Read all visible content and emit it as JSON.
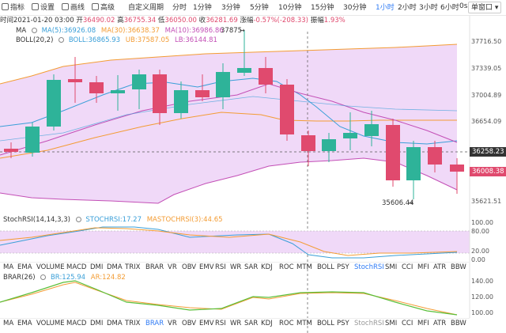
{
  "toolbar": {
    "tools": [
      {
        "label": "指标",
        "icon": "indicator-icon"
      },
      {
        "label": "设置",
        "icon": "settings-icon"
      },
      {
        "label": "画线",
        "icon": "draw-line-icon"
      },
      {
        "label": "高级",
        "icon": "advanced-icon"
      }
    ],
    "custom_period": "自定义周期",
    "timeframes": [
      "分时",
      "1分钟",
      "3分钟",
      "5分钟",
      "10分钟",
      "15分钟",
      "30分钟",
      "1小时",
      "2小时",
      "3小时",
      "6小时"
    ],
    "active_timeframe": "1小时",
    "more": "0s",
    "window_button": "单窗口"
  },
  "info": {
    "time_label": "时间",
    "time": "2021-01-20 03:00",
    "open_label": "开",
    "open": "36490.02",
    "high_label": "高",
    "high": "36755.34",
    "low_label": "低",
    "low": "36050.00",
    "close_label": "收",
    "close": "36281.69",
    "change_label": "涨幅",
    "change": "-0.57%(-208.33)",
    "amplitude_label": "振幅",
    "amplitude": "1.93%"
  },
  "main_legend": {
    "ma_name": "MA",
    "ma5": "MA(5):36926.08",
    "ma30": "MA(30):36638.37",
    "ma10": "MA(10):36986.86",
    "boll_name": "BOLL(20,2)",
    "boll_mid": "BOLL:36865.93",
    "boll_ub": "UB:37587.05",
    "boll_lb": "LB:36144.81"
  },
  "price_axis": [
    "37716.50",
    "37339.05",
    "37004.89",
    "36654.09",
    "36258.23",
    "35621.51"
  ],
  "price_tags": {
    "crosshair": "36258.23",
    "last": "36008.38"
  },
  "annotations": {
    "high": "37875",
    "low": "35606.44"
  },
  "stoch_legend": {
    "name": "StochRSI(14,14,3,3)",
    "k": "STOCHRSI:17.27",
    "d": "MASTOCHRSI(3):44.65"
  },
  "stoch_axis": [
    "100.00",
    "80.00",
    "20.00",
    "0.00"
  ],
  "brar_legend": {
    "name": "BRAR(26)",
    "br": "BR:125.94",
    "ar": "AR:124.82"
  },
  "brar_axis": [
    "140.00",
    "120.00",
    "100.00"
  ],
  "indicator_tabs": [
    "MA",
    "EMA",
    "VOLUME",
    "MACD",
    "DMI",
    "DMA",
    "TRIX",
    "BRAR",
    "VR",
    "OBV",
    "EMV",
    "RSI",
    "WR",
    "SAR",
    "KDJ",
    "ROC",
    "MTM",
    "BOLL",
    "PSY",
    "StochRSI",
    "SMI",
    "CCI",
    "MFI",
    "ATR",
    "BBW"
  ],
  "indicator_tabs_row1_active": "StochRSI",
  "indicator_tabs_row2_active": "BRAR",
  "indicator_tabs_row2_dim": "StochRSI",
  "colors": {
    "up": "#2eb399",
    "down": "#e04a6e",
    "ma5": "#3a9fd8",
    "ma10": "#c34fb6",
    "ma30": "#f39c34",
    "band": "#f0d9f8",
    "ub": "#f39c34",
    "lb": "#c34fb6",
    "accent": "#2f7bf5"
  }
}
